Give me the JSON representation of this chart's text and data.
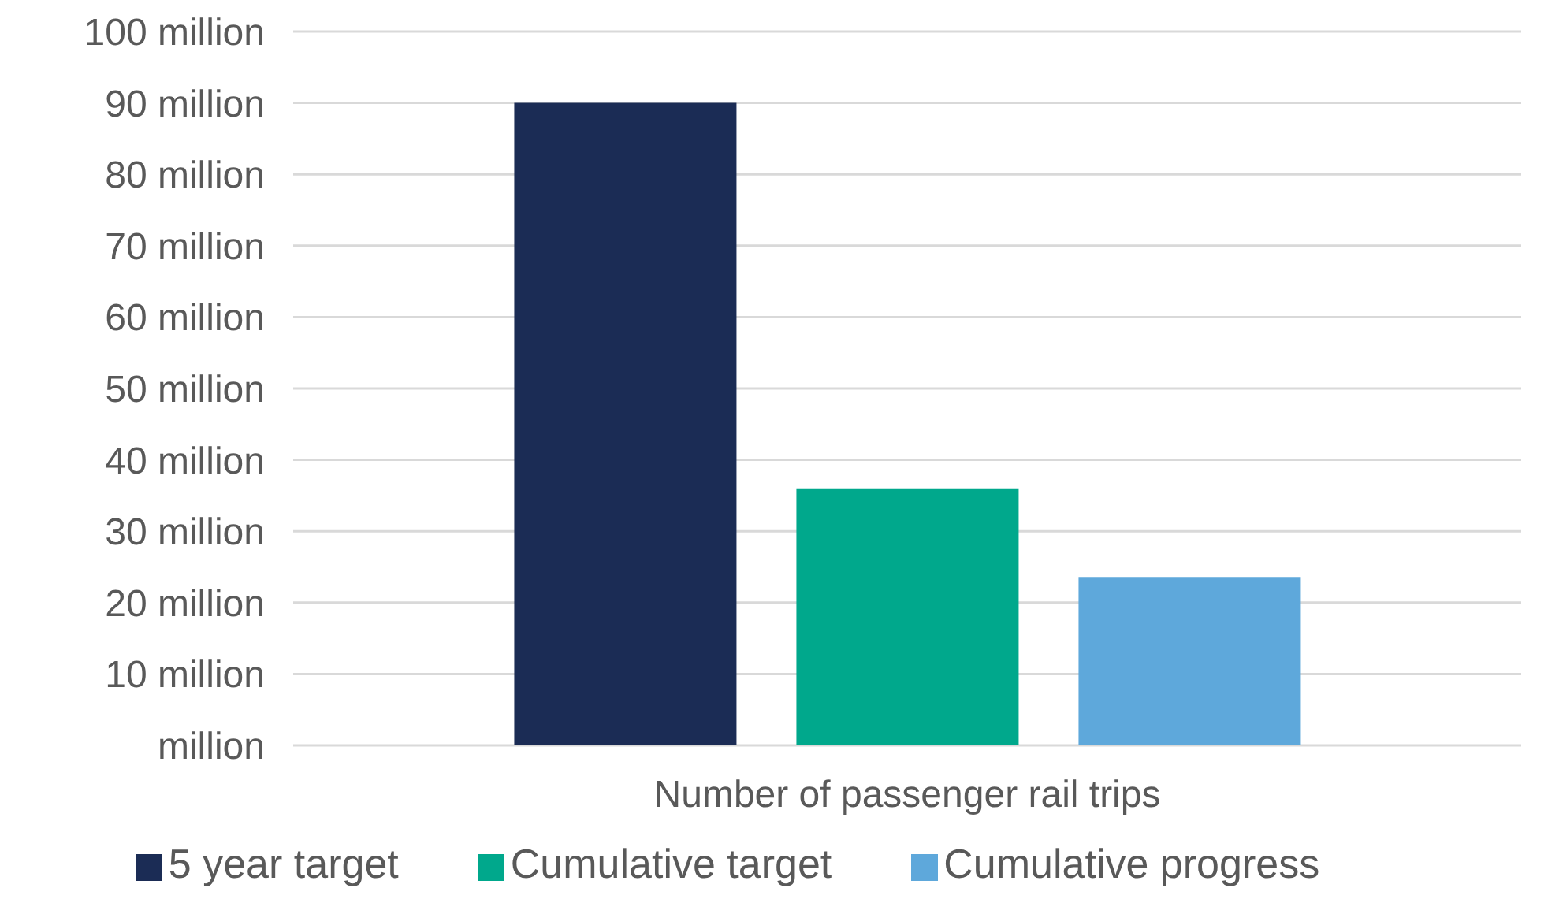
{
  "chart_data": {
    "type": "bar",
    "categories": [
      "Number of passenger rail trips"
    ],
    "series": [
      {
        "name": "5 year target",
        "color": "#1b2c55",
        "values": [
          90
        ]
      },
      {
        "name": "Cumulative target",
        "color": "#00a88c",
        "values": [
          36
        ]
      },
      {
        "name": "Cumulative progress",
        "color": "#5ea8db",
        "values": [
          23.6
        ]
      }
    ],
    "ylim": [
      0,
      100
    ],
    "yticks": [
      {
        "value": 0,
        "label": "million"
      },
      {
        "value": 10,
        "label": "10 million"
      },
      {
        "value": 20,
        "label": "20 million"
      },
      {
        "value": 30,
        "label": "30 million"
      },
      {
        "value": 40,
        "label": "40 million"
      },
      {
        "value": 50,
        "label": "50 million"
      },
      {
        "value": 60,
        "label": "60 million"
      },
      {
        "value": 70,
        "label": "70 million"
      },
      {
        "value": 80,
        "label": "80 million"
      },
      {
        "value": 90,
        "label": "90 million"
      },
      {
        "value": 100,
        "label": "100 million"
      }
    ],
    "grid": "y",
    "legend": "bottom"
  }
}
